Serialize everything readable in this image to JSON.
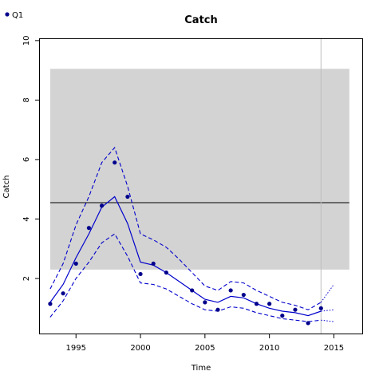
{
  "chart_data": {
    "type": "line",
    "title": "Catch",
    "xlabel": "Time",
    "ylabel": "Catch",
    "xlim": [
      1992.2,
      2017.2
    ],
    "ylim": [
      0.15,
      10.05
    ],
    "x_ticks": [
      1995,
      2000,
      2005,
      2010,
      2015
    ],
    "y_ticks": [
      2,
      4,
      6,
      8,
      10
    ],
    "legend": {
      "placement": "top-left",
      "label": "Q1"
    },
    "band": {
      "x0": 1993,
      "x1": 2016.2,
      "y0": 2.3,
      "y1": 9.05,
      "color": "#d3d3d3"
    },
    "hline": {
      "y": 4.55,
      "color": "#000000"
    },
    "vline": {
      "x": 2014,
      "color": "#bebebe"
    },
    "colors": {
      "series": "#0000cc",
      "points": "#00008b"
    },
    "observed": {
      "x": [
        1993,
        1994,
        1995,
        1996,
        1997,
        1998,
        1999,
        2000,
        2001,
        2002,
        2004,
        2005,
        2006,
        2007,
        2008,
        2009,
        2010,
        2011,
        2012,
        2013,
        2014
      ],
      "y": [
        1.15,
        1.5,
        2.5,
        3.7,
        4.45,
        5.9,
        4.75,
        2.15,
        2.5,
        2.2,
        1.6,
        1.2,
        0.95,
        1.6,
        1.45,
        1.15,
        1.15,
        0.75,
        0.95,
        0.5,
        1.0
      ]
    },
    "fit": {
      "x": [
        1993,
        1994,
        1995,
        1996,
        1997,
        1998,
        1999,
        2000,
        2001,
        2002,
        2003,
        2004,
        2005,
        2006,
        2007,
        2008,
        2009,
        2010,
        2011,
        2012,
        2013,
        2014
      ],
      "y": [
        1.2,
        1.8,
        2.7,
        3.5,
        4.4,
        4.75,
        3.85,
        2.55,
        2.45,
        2.2,
        1.9,
        1.6,
        1.3,
        1.2,
        1.4,
        1.35,
        1.15,
        1.0,
        0.9,
        0.85,
        0.75,
        0.9
      ]
    },
    "upper": {
      "x": [
        1993,
        1994,
        1995,
        1996,
        1997,
        1998,
        1999,
        2000,
        2001,
        2002,
        2003,
        2004,
        2005,
        2006,
        2007,
        2008,
        2009,
        2010,
        2011,
        2012,
        2013,
        2014
      ],
      "y": [
        1.65,
        2.5,
        3.8,
        4.75,
        5.9,
        6.4,
        5.1,
        3.5,
        3.3,
        3.05,
        2.65,
        2.2,
        1.75,
        1.6,
        1.9,
        1.85,
        1.6,
        1.4,
        1.2,
        1.1,
        0.95,
        1.2
      ]
    },
    "lower": {
      "x": [
        1993,
        1994,
        1995,
        1996,
        1997,
        1998,
        1999,
        2000,
        2001,
        2002,
        2003,
        2004,
        2005,
        2006,
        2007,
        2008,
        2009,
        2010,
        2011,
        2012,
        2013,
        2014
      ],
      "y": [
        0.7,
        1.25,
        2.0,
        2.55,
        3.2,
        3.5,
        2.75,
        1.85,
        1.8,
        1.65,
        1.4,
        1.15,
        0.95,
        0.9,
        1.05,
        1.0,
        0.85,
        0.75,
        0.65,
        0.6,
        0.55,
        0.6
      ]
    },
    "forecast": {
      "x": [
        2014,
        2015
      ],
      "fit": [
        0.9,
        0.95
      ],
      "upper": [
        1.2,
        1.8
      ],
      "lower": [
        0.6,
        0.55
      ]
    }
  }
}
